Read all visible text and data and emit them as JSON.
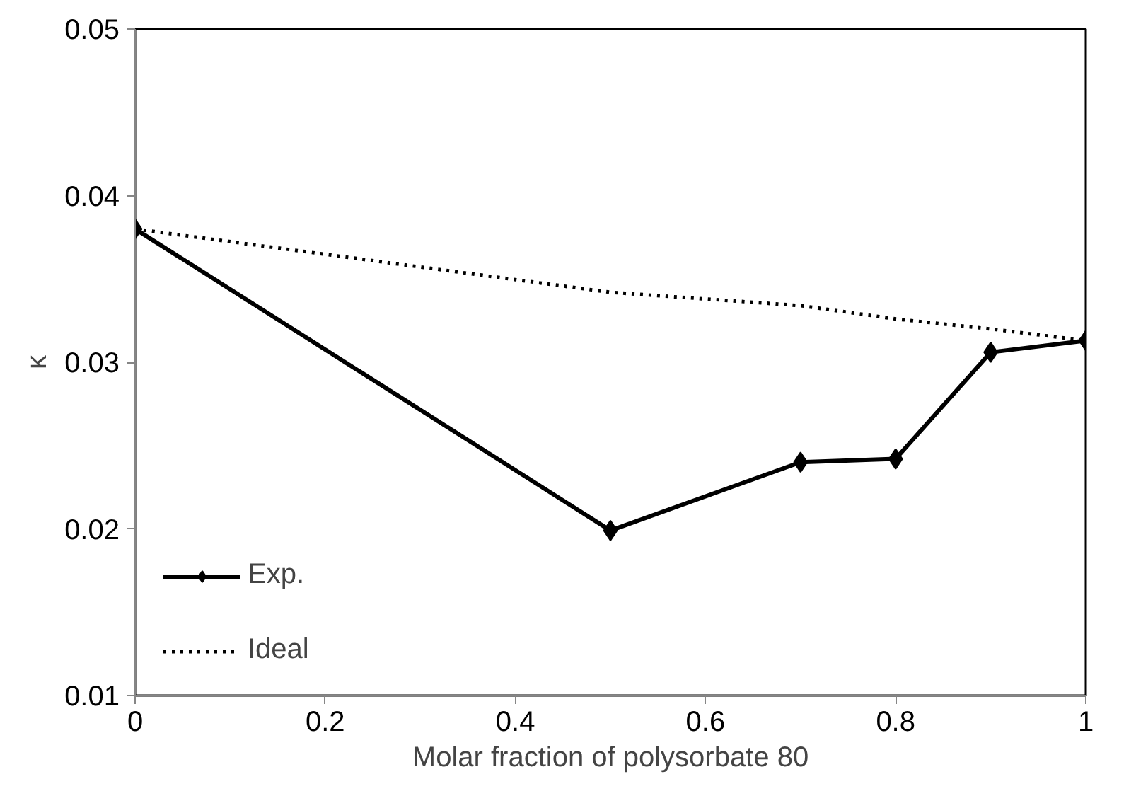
{
  "chart_data": {
    "type": "line",
    "xlabel": "Molar fraction of polysorbate 80",
    "ylabel": "κ",
    "xlim": [
      0,
      1
    ],
    "xticks": [
      0,
      0.2,
      0.4,
      0.6,
      0.8,
      1
    ],
    "ylim": [
      0.01,
      0.05
    ],
    "yticks": [
      0.01,
      0.02,
      0.03,
      0.04,
      0.05
    ],
    "grid": false,
    "legend": "bottom left",
    "series": [
      {
        "name": "Exp.",
        "color": "#000000",
        "marker": "diamond",
        "line_style": "solid",
        "x": [
          0,
          0.5,
          0.7,
          0.8,
          0.9,
          1
        ],
        "values": [
          0.038,
          0.0199,
          0.024,
          0.0242,
          0.0306,
          0.0313
        ]
      },
      {
        "name": "Ideal",
        "color": "#000000",
        "marker": "none",
        "line_style": "dotted",
        "x": [
          0,
          0.5,
          0.7,
          0.8,
          0.9,
          1
        ],
        "values": [
          0.038,
          0.0342,
          0.0334,
          0.0326,
          0.032,
          0.0313
        ]
      }
    ]
  }
}
